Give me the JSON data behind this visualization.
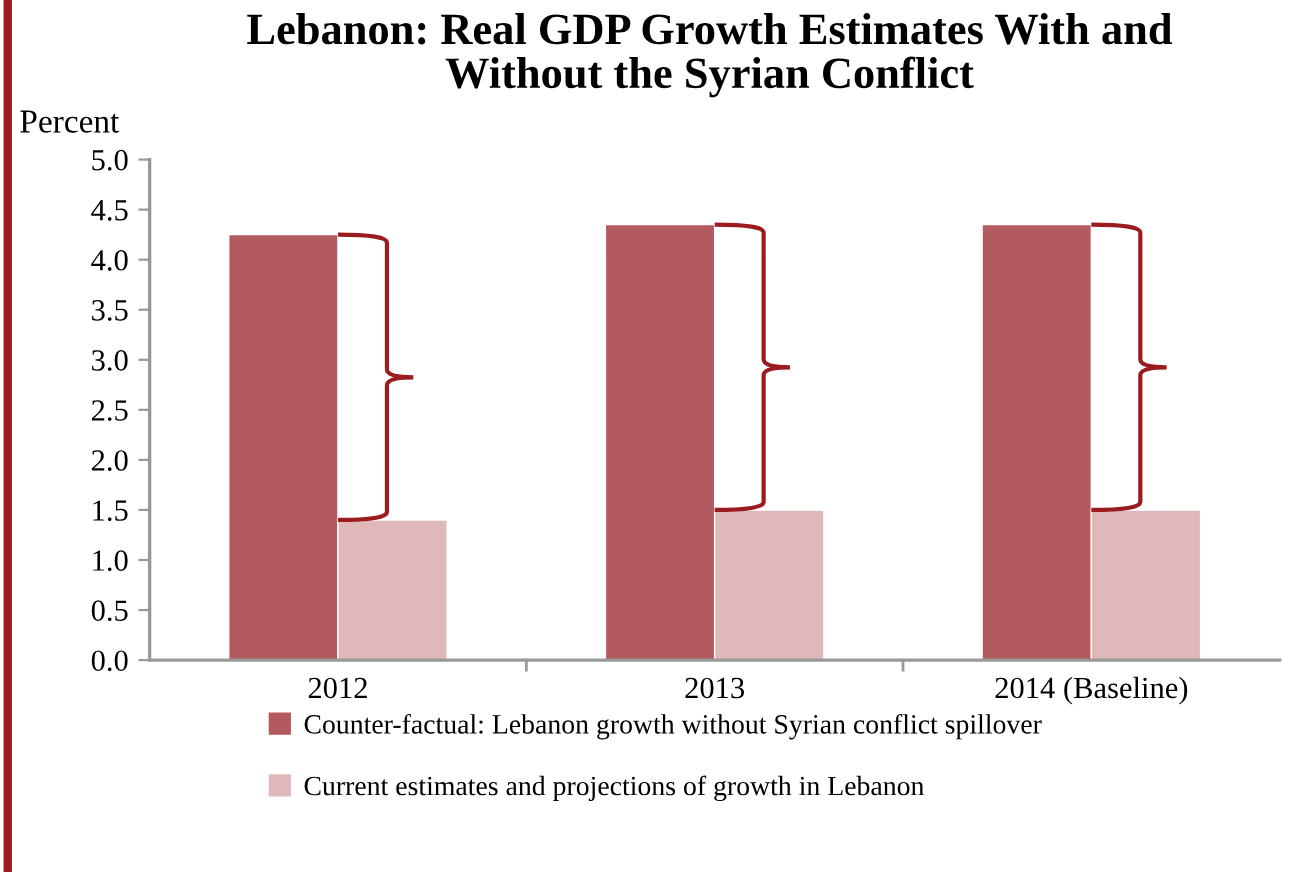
{
  "chart_data": {
    "type": "bar",
    "title": "Lebanon: Real GDP Growth Estimates With and\nWithout the Syrian Conflict",
    "ylabel": "Percent",
    "categories": [
      "2012",
      "2013",
      "2014 (Baseline)"
    ],
    "series": [
      {
        "name": "Counter-factual: Lebanon growth without Syrian conflict spillover",
        "color": "#b35a5e",
        "values": [
          4.25,
          4.35,
          4.35
        ]
      },
      {
        "name": "Current estimates and projections of growth in Lebanon",
        "color": "#dfb8b9",
        "values": [
          1.4,
          1.5,
          1.5
        ]
      }
    ],
    "ylim": [
      0,
      5
    ],
    "yticks": [
      {
        "value": 0,
        "label": "0.0"
      },
      {
        "value": 0.5,
        "label": "0.5"
      },
      {
        "value": 1,
        "label": "1.0"
      },
      {
        "value": 1.5,
        "label": "1.5"
      },
      {
        "value": 2,
        "label": "2.0"
      },
      {
        "value": 2.5,
        "label": "2.5"
      },
      {
        "value": 3,
        "label": "3.0"
      },
      {
        "value": 3.5,
        "label": "3.5"
      },
      {
        "value": 4,
        "label": "4.0"
      },
      {
        "value": 4.5,
        "label": "4.5"
      },
      {
        "value": 5,
        "label": "5.0"
      }
    ],
    "grid": false,
    "legend": "bottom"
  }
}
